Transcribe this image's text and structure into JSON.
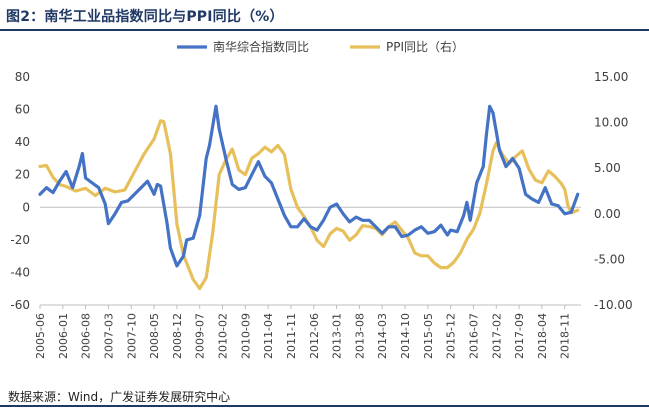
{
  "figure": {
    "title": "图2：南华工业品指数同比与PPI同比（%）",
    "source": "数据来源：Wind，广发证券发展研究中心"
  },
  "colors": {
    "south_china": "#4472c4",
    "ppi": "#e7c05b",
    "rule": "#1f3864",
    "text": "#404040"
  },
  "chart_data": {
    "type": "line",
    "legend_position": "top",
    "grid": false,
    "x_tick_labels": [
      "2005-06",
      "2006-01",
      "2006-08",
      "2007-03",
      "2007-10",
      "2008-05",
      "2008-12",
      "2009-07",
      "2010-02",
      "2010-09",
      "2011-04",
      "2011-11",
      "2012-06",
      "2013-01",
      "2013-08",
      "2014-03",
      "2014-10",
      "2015-05",
      "2015-12",
      "2016-07",
      "2017-02",
      "2017-09",
      "2018-04",
      "2018-11"
    ],
    "x_start": "2005-06",
    "y_left": {
      "min": -60,
      "max": 80,
      "ticks": [
        "80",
        "60",
        "40",
        "20",
        "0",
        "-20",
        "-40",
        "-60"
      ]
    },
    "y_right": {
      "min": -10,
      "max": 15,
      "ticks": [
        "15.00",
        "10.00",
        "5.00",
        "0.00",
        "-5.00",
        "-10.00"
      ]
    },
    "series": [
      {
        "name": "南华综合指数同比",
        "axis": "left",
        "color": "#4472c4",
        "points": [
          [
            "2005-06",
            8
          ],
          [
            "2005-08",
            12
          ],
          [
            "2005-10",
            9
          ],
          [
            "2005-12",
            16
          ],
          [
            "2006-02",
            22
          ],
          [
            "2006-04",
            12
          ],
          [
            "2006-06",
            25
          ],
          [
            "2006-07",
            33
          ],
          [
            "2006-08",
            18
          ],
          [
            "2006-10",
            15
          ],
          [
            "2006-12",
            12
          ],
          [
            "2007-02",
            2
          ],
          [
            "2007-03",
            -10
          ],
          [
            "2007-05",
            -4
          ],
          [
            "2007-07",
            3
          ],
          [
            "2007-09",
            4
          ],
          [
            "2007-11",
            8
          ],
          [
            "2008-01",
            12
          ],
          [
            "2008-03",
            16
          ],
          [
            "2008-05",
            8
          ],
          [
            "2008-06",
            14
          ],
          [
            "2008-07",
            13
          ],
          [
            "2008-09",
            -10
          ],
          [
            "2008-10",
            -25
          ],
          [
            "2008-12",
            -36
          ],
          [
            "2009-02",
            -30
          ],
          [
            "2009-03",
            -20
          ],
          [
            "2009-05",
            -19
          ],
          [
            "2009-07",
            -5
          ],
          [
            "2009-09",
            30
          ],
          [
            "2009-10",
            38
          ],
          [
            "2009-12",
            62
          ],
          [
            "2010-01",
            48
          ],
          [
            "2010-03",
            30
          ],
          [
            "2010-05",
            14
          ],
          [
            "2010-07",
            11
          ],
          [
            "2010-09",
            12
          ],
          [
            "2010-11",
            20
          ],
          [
            "2011-01",
            28
          ],
          [
            "2011-03",
            19
          ],
          [
            "2011-05",
            15
          ],
          [
            "2011-07",
            5
          ],
          [
            "2011-09",
            -5
          ],
          [
            "2011-11",
            -12
          ],
          [
            "2012-01",
            -12
          ],
          [
            "2012-03",
            -7
          ],
          [
            "2012-05",
            -12
          ],
          [
            "2012-07",
            -14
          ],
          [
            "2012-09",
            -8
          ],
          [
            "2012-11",
            0
          ],
          [
            "2013-01",
            2
          ],
          [
            "2013-03",
            -4
          ],
          [
            "2013-05",
            -9
          ],
          [
            "2013-07",
            -6
          ],
          [
            "2013-09",
            -8
          ],
          [
            "2013-11",
            -8
          ],
          [
            "2014-01",
            -12
          ],
          [
            "2014-03",
            -16
          ],
          [
            "2014-05",
            -12
          ],
          [
            "2014-07",
            -12
          ],
          [
            "2014-09",
            -18
          ],
          [
            "2014-11",
            -17
          ],
          [
            "2015-01",
            -14
          ],
          [
            "2015-03",
            -12
          ],
          [
            "2015-05",
            -16
          ],
          [
            "2015-07",
            -15
          ],
          [
            "2015-09",
            -11
          ],
          [
            "2015-11",
            -17
          ],
          [
            "2015-12",
            -14
          ],
          [
            "2016-02",
            -15
          ],
          [
            "2016-04",
            -5
          ],
          [
            "2016-05",
            3
          ],
          [
            "2016-06",
            -8
          ],
          [
            "2016-08",
            15
          ],
          [
            "2016-10",
            25
          ],
          [
            "2016-11",
            45
          ],
          [
            "2016-12",
            62
          ],
          [
            "2017-01",
            58
          ],
          [
            "2017-03",
            35
          ],
          [
            "2017-05",
            25
          ],
          [
            "2017-07",
            30
          ],
          [
            "2017-09",
            24
          ],
          [
            "2017-11",
            8
          ],
          [
            "2018-01",
            5
          ],
          [
            "2018-03",
            3
          ],
          [
            "2018-05",
            12
          ],
          [
            "2018-07",
            2
          ],
          [
            "2018-09",
            1
          ],
          [
            "2018-11",
            -4
          ],
          [
            "2019-01",
            -3
          ],
          [
            "2019-03",
            8
          ]
        ]
      },
      {
        "name": "PPI同比（右）",
        "axis": "right",
        "color": "#e7c05b",
        "points": [
          [
            "2005-06",
            5.2
          ],
          [
            "2005-08",
            5.3
          ],
          [
            "2005-10",
            4.0
          ],
          [
            "2005-12",
            3.2
          ],
          [
            "2006-02",
            3.0
          ],
          [
            "2006-05",
            2.5
          ],
          [
            "2006-08",
            2.8
          ],
          [
            "2006-11",
            2.0
          ],
          [
            "2007-02",
            2.8
          ],
          [
            "2007-05",
            2.4
          ],
          [
            "2007-08",
            2.6
          ],
          [
            "2007-11",
            4.6
          ],
          [
            "2008-02",
            6.6
          ],
          [
            "2008-05",
            8.2
          ],
          [
            "2008-07",
            10.2
          ],
          [
            "2008-08",
            10.1
          ],
          [
            "2008-10",
            6.6
          ],
          [
            "2008-12",
            -1.1
          ],
          [
            "2009-02",
            -4.5
          ],
          [
            "2009-05",
            -7.2
          ],
          [
            "2009-07",
            -8.2
          ],
          [
            "2009-09",
            -7.0
          ],
          [
            "2009-11",
            -2.1
          ],
          [
            "2010-01",
            4.3
          ],
          [
            "2010-03",
            5.9
          ],
          [
            "2010-05",
            7.1
          ],
          [
            "2010-07",
            4.8
          ],
          [
            "2010-09",
            4.3
          ],
          [
            "2010-11",
            6.1
          ],
          [
            "2011-01",
            6.6
          ],
          [
            "2011-03",
            7.3
          ],
          [
            "2011-05",
            6.8
          ],
          [
            "2011-07",
            7.5
          ],
          [
            "2011-09",
            6.5
          ],
          [
            "2011-11",
            2.7
          ],
          [
            "2012-01",
            0.7
          ],
          [
            "2012-03",
            -0.3
          ],
          [
            "2012-05",
            -1.4
          ],
          [
            "2012-07",
            -2.9
          ],
          [
            "2012-09",
            -3.6
          ],
          [
            "2012-11",
            -2.2
          ],
          [
            "2013-01",
            -1.6
          ],
          [
            "2013-03",
            -1.9
          ],
          [
            "2013-05",
            -2.9
          ],
          [
            "2013-07",
            -2.3
          ],
          [
            "2013-09",
            -1.3
          ],
          [
            "2013-11",
            -1.4
          ],
          [
            "2014-01",
            -1.6
          ],
          [
            "2014-03",
            -2.3
          ],
          [
            "2014-05",
            -1.4
          ],
          [
            "2014-07",
            -0.9
          ],
          [
            "2014-09",
            -1.8
          ],
          [
            "2014-11",
            -2.7
          ],
          [
            "2015-01",
            -4.3
          ],
          [
            "2015-03",
            -4.6
          ],
          [
            "2015-05",
            -4.6
          ],
          [
            "2015-07",
            -5.4
          ],
          [
            "2015-09",
            -5.9
          ],
          [
            "2015-11",
            -5.9
          ],
          [
            "2016-01",
            -5.3
          ],
          [
            "2016-03",
            -4.3
          ],
          [
            "2016-05",
            -2.8
          ],
          [
            "2016-07",
            -1.7
          ],
          [
            "2016-09",
            0.1
          ],
          [
            "2016-11",
            3.3
          ],
          [
            "2017-01",
            6.9
          ],
          [
            "2017-02",
            7.8
          ],
          [
            "2017-04",
            6.4
          ],
          [
            "2017-06",
            5.5
          ],
          [
            "2017-08",
            6.3
          ],
          [
            "2017-10",
            6.9
          ],
          [
            "2017-12",
            4.9
          ],
          [
            "2018-02",
            3.7
          ],
          [
            "2018-04",
            3.4
          ],
          [
            "2018-06",
            4.7
          ],
          [
            "2018-08",
            4.1
          ],
          [
            "2018-10",
            3.3
          ],
          [
            "2018-11",
            2.7
          ],
          [
            "2018-12",
            0.9
          ],
          [
            "2019-01",
            0.1
          ],
          [
            "2019-03",
            0.4
          ]
        ]
      }
    ]
  }
}
